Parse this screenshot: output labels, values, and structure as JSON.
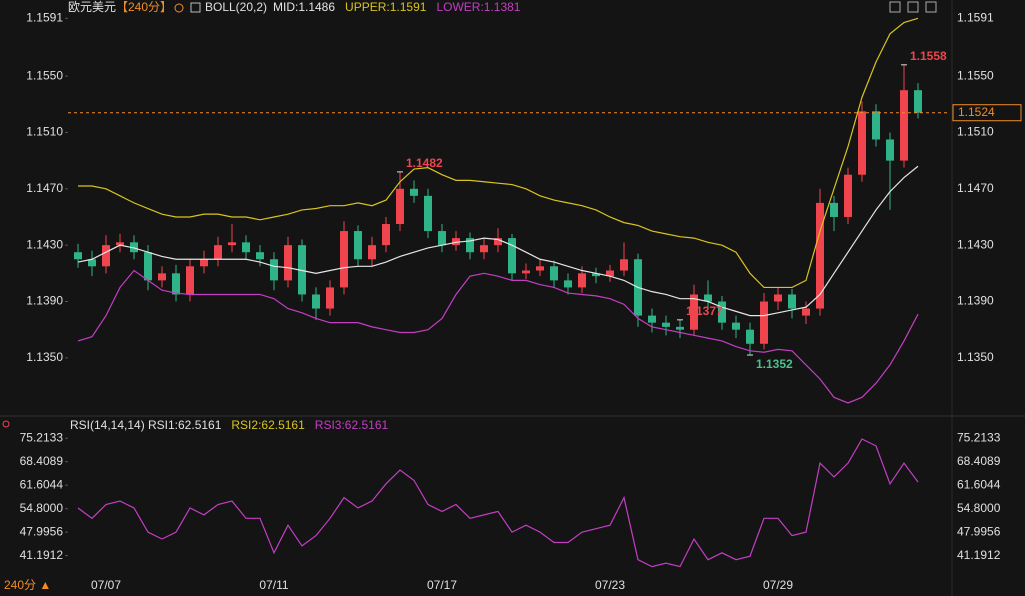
{
  "chart_data": [
    {
      "type": "candlestick",
      "title": "欧元美元",
      "subtitle": "【240分】",
      "indicator": "BOLL(20,2)",
      "period_label": "240分 ▲",
      "categories": [
        null,
        null,
        "07/07",
        null,
        null,
        null,
        null,
        null,
        null,
        null,
        null,
        null,
        null,
        null,
        "07/11",
        null,
        null,
        null,
        null,
        null,
        null,
        null,
        null,
        null,
        null,
        null,
        "07/17",
        null,
        null,
        null,
        null,
        null,
        null,
        null,
        null,
        null,
        null,
        null,
        "07/23",
        null,
        null,
        null,
        null,
        null,
        null,
        null,
        null,
        null,
        null,
        null,
        "07/29",
        null,
        null,
        null,
        null,
        null,
        null,
        null,
        null,
        null,
        null
      ],
      "open": [
        1.1425,
        1.142,
        1.1415,
        1.143,
        1.1432,
        1.1425,
        1.1405,
        1.141,
        1.1395,
        1.1415,
        1.142,
        1.143,
        1.1432,
        1.1425,
        1.142,
        1.1405,
        1.143,
        1.1395,
        1.1385,
        1.14,
        1.144,
        1.142,
        1.143,
        1.1445,
        1.147,
        1.1465,
        1.144,
        1.143,
        1.1435,
        1.1425,
        1.143,
        1.1435,
        1.141,
        1.1412,
        1.1415,
        1.1405,
        1.14,
        1.141,
        1.1408,
        1.1412,
        1.142,
        1.138,
        1.1375,
        1.1372,
        1.137,
        1.1395,
        1.139,
        1.1375,
        1.137,
        1.136,
        1.139,
        1.1395,
        1.138,
        1.1385,
        1.146,
        1.145,
        1.148,
        1.1525,
        1.1505,
        1.149,
        1.154
      ],
      "high": [
        1.1431,
        1.1426,
        1.1437,
        1.1438,
        1.1437,
        1.143,
        1.1415,
        1.1416,
        1.142,
        1.1426,
        1.1436,
        1.1445,
        1.1437,
        1.143,
        1.1425,
        1.1436,
        1.1434,
        1.14,
        1.1405,
        1.1447,
        1.1444,
        1.1436,
        1.145,
        1.1482,
        1.1476,
        1.147,
        1.1445,
        1.144,
        1.1439,
        1.1435,
        1.1442,
        1.1438,
        1.1417,
        1.142,
        1.1419,
        1.141,
        1.1415,
        1.1414,
        1.1416,
        1.1432,
        1.1424,
        1.1385,
        1.138,
        1.1377,
        1.1402,
        1.1405,
        1.1394,
        1.138,
        1.1375,
        1.1396,
        1.14,
        1.1399,
        1.139,
        1.147,
        1.1465,
        1.1485,
        1.1532,
        1.153,
        1.151,
        1.1558,
        1.1545
      ],
      "low": [
        1.1414,
        1.1408,
        1.141,
        1.1425,
        1.142,
        1.1398,
        1.14,
        1.139,
        1.139,
        1.141,
        1.1415,
        1.1425,
        1.142,
        1.1415,
        1.1398,
        1.14,
        1.139,
        1.1377,
        1.138,
        1.1395,
        1.1415,
        1.1415,
        1.1425,
        1.144,
        1.146,
        1.1435,
        1.1425,
        1.1426,
        1.142,
        1.142,
        1.1425,
        1.1405,
        1.1406,
        1.1408,
        1.14,
        1.1395,
        1.1396,
        1.1403,
        1.1404,
        1.1408,
        1.1372,
        1.1368,
        1.1366,
        1.1364,
        1.1366,
        1.1385,
        1.137,
        1.1364,
        1.1352,
        1.1356,
        1.1384,
        1.1378,
        1.1374,
        1.138,
        1.144,
        1.1445,
        1.1475,
        1.15,
        1.1455,
        1.1485,
        1.152
      ],
      "close": [
        1.142,
        1.1415,
        1.143,
        1.1432,
        1.1425,
        1.1405,
        1.141,
        1.1395,
        1.1415,
        1.142,
        1.143,
        1.1432,
        1.1425,
        1.142,
        1.1405,
        1.143,
        1.1395,
        1.1385,
        1.14,
        1.144,
        1.142,
        1.143,
        1.1445,
        1.147,
        1.1465,
        1.144,
        1.143,
        1.1435,
        1.1425,
        1.143,
        1.1435,
        1.141,
        1.1412,
        1.1415,
        1.1405,
        1.14,
        1.141,
        1.1408,
        1.1412,
        1.142,
        1.138,
        1.1375,
        1.1372,
        1.137,
        1.1395,
        1.139,
        1.1375,
        1.137,
        1.136,
        1.139,
        1.1395,
        1.1385,
        1.1385,
        1.146,
        1.145,
        1.148,
        1.1525,
        1.1505,
        1.149,
        1.154,
        1.1524
      ],
      "up_color": "#f0444e",
      "down_color": "#2fb489",
      "series": [
        {
          "name": "MID:1.1486",
          "color": "#e6e6e6",
          "values": [
            1.1418,
            1.142,
            1.1425,
            1.143,
            1.1428,
            1.1425,
            1.1422,
            1.142,
            1.142,
            1.142,
            1.142,
            1.142,
            1.142,
            1.1418,
            1.1415,
            1.1414,
            1.1412,
            1.141,
            1.1412,
            1.1414,
            1.1415,
            1.1415,
            1.1418,
            1.1422,
            1.1425,
            1.1428,
            1.143,
            1.1432,
            1.1433,
            1.1435,
            1.1434,
            1.143,
            1.1425,
            1.142,
            1.1418,
            1.1415,
            1.1412,
            1.141,
            1.1408,
            1.1405,
            1.14,
            1.1397,
            1.1395,
            1.1392,
            1.1392,
            1.139,
            1.1386,
            1.1383,
            1.138,
            1.138,
            1.1382,
            1.1384,
            1.1386,
            1.1395,
            1.141,
            1.1425,
            1.144,
            1.1455,
            1.1468,
            1.1478,
            1.1486
          ]
        },
        {
          "name": "UPPER:1.1591",
          "color": "#d9c41e",
          "values": [
            1.1472,
            1.1472,
            1.147,
            1.1465,
            1.146,
            1.1456,
            1.1452,
            1.145,
            1.145,
            1.1452,
            1.1452,
            1.145,
            1.145,
            1.1448,
            1.145,
            1.1452,
            1.1455,
            1.1456,
            1.1458,
            1.1458,
            1.146,
            1.1458,
            1.1462,
            1.1475,
            1.1484,
            1.1485,
            1.148,
            1.1476,
            1.1476,
            1.1475,
            1.1474,
            1.1473,
            1.147,
            1.1465,
            1.1462,
            1.146,
            1.1458,
            1.1455,
            1.145,
            1.1446,
            1.1444,
            1.144,
            1.1438,
            1.1436,
            1.1435,
            1.1432,
            1.143,
            1.1425,
            1.141,
            1.14,
            1.14,
            1.14,
            1.1405,
            1.144,
            1.147,
            1.15,
            1.1535,
            1.156,
            1.158,
            1.1588,
            1.1591
          ]
        },
        {
          "name": "LOWER:1.1381",
          "color": "#c43ec4",
          "values": [
            1.1362,
            1.1365,
            1.138,
            1.14,
            1.1412,
            1.1405,
            1.1398,
            1.1396,
            1.1395,
            1.1395,
            1.1395,
            1.1395,
            1.1395,
            1.1395,
            1.1392,
            1.1385,
            1.1382,
            1.1378,
            1.1375,
            1.1375,
            1.1375,
            1.1372,
            1.137,
            1.1368,
            1.1368,
            1.137,
            1.1378,
            1.1395,
            1.1408,
            1.141,
            1.1408,
            1.1405,
            1.1405,
            1.1402,
            1.14,
            1.1396,
            1.1395,
            1.1394,
            1.1392,
            1.1388,
            1.1378,
            1.1372,
            1.137,
            1.1368,
            1.1366,
            1.1364,
            1.1362,
            1.1358,
            1.1355,
            1.1354,
            1.1356,
            1.1355,
            1.1345,
            1.1335,
            1.1322,
            1.1318,
            1.1322,
            1.1332,
            1.1345,
            1.1362,
            1.1381
          ]
        }
      ],
      "ylim": [
        1.1313,
        1.1604
      ],
      "yticks": [
        1.1591,
        {
          "value": 1.155,
          "label": "1.1550"
        },
        {
          "value": 1.151,
          "label": "1.1510"
        },
        {
          "value": 1.147,
          "label": "1.1470"
        },
        {
          "value": 1.143,
          "label": "1.1430"
        },
        {
          "value": 1.139,
          "label": "1.1390"
        },
        {
          "value": 1.135,
          "label": "1.1350"
        }
      ],
      "annotations": [
        {
          "value": 1.1558,
          "label": "1.1558"
        },
        {
          "value": 1.1482,
          "label": "1.1482"
        },
        {
          "value": 1.1377,
          "label": "1.1377"
        },
        {
          "value": 1.1352,
          "label": "1.1352"
        }
      ],
      "last": {
        "value": 1.1524,
        "label": "1.1524"
      }
    },
    {
      "type": "line",
      "title": "RSI(14,14,14)",
      "series": [
        {
          "name": "RSI1:62.5161",
          "color": "#c43ec4",
          "values": [
            55,
            52,
            56,
            57,
            55,
            48,
            46,
            48,
            55,
            53,
            56,
            57,
            52,
            52,
            42,
            50,
            44,
            47,
            52,
            58,
            55,
            57,
            62,
            66,
            63,
            56,
            54,
            56,
            52,
            53,
            54,
            48,
            50,
            48,
            45,
            45,
            48,
            49,
            50,
            58,
            40,
            38,
            39,
            38,
            46,
            40,
            42,
            40,
            41,
            52,
            52,
            47,
            48,
            68,
            64,
            68,
            75,
            73,
            62,
            68,
            62.5161
          ]
        }
      ],
      "legend_extra": [
        {
          "name": "RSI2:62.5161",
          "color": "#d9c41e"
        },
        {
          "name": "RSI3:62.5161",
          "color": "#c43ec4"
        }
      ],
      "ylim": [
        34.7,
        80.5
      ],
      "yticks": [
        75.2133,
        68.4089,
        61.6044,
        {
          "value": 54.8,
          "label": "54.8000"
        },
        47.9956,
        41.1912
      ]
    }
  ]
}
